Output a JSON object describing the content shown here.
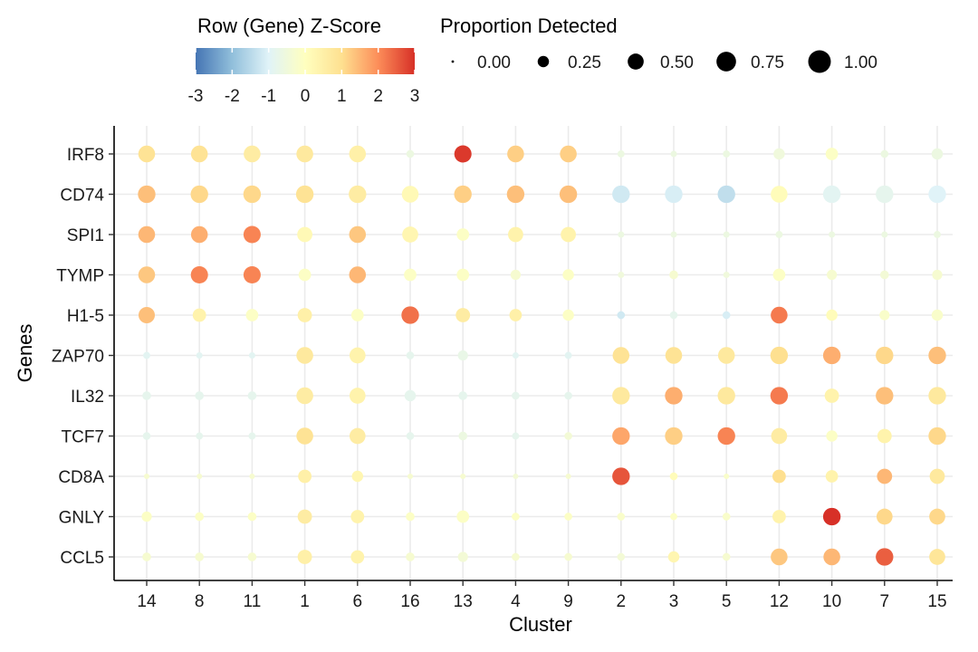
{
  "chart_data": {
    "type": "dotplot",
    "xlabel": "Cluster",
    "ylabel": "Genes",
    "clusters": [
      "14",
      "8",
      "11",
      "1",
      "6",
      "16",
      "13",
      "4",
      "9",
      "2",
      "3",
      "5",
      "12",
      "10",
      "7",
      "15"
    ],
    "genes": [
      "IRF8",
      "CD74",
      "SPI1",
      "TYMP",
      "H1-5",
      "ZAP70",
      "IL32",
      "TCF7",
      "CD8A",
      "GNLY",
      "CCL5"
    ],
    "legend_color": {
      "title": "Row (Gene) Z-Score",
      "ticks": [
        "-3",
        "-2",
        "-1",
        "0",
        "1",
        "2",
        "3"
      ],
      "range": [
        -3,
        3
      ],
      "colors": [
        "#4575b4",
        "#91bfdb",
        "#e0f3f8",
        "#ffffbf",
        "#fee090",
        "#fc8d59",
        "#d73027"
      ]
    },
    "legend_size": {
      "title": "Proportion Detected",
      "values": [
        0.0,
        0.25,
        0.5,
        0.75,
        1.0
      ],
      "labels": [
        "0.00",
        "0.25",
        "0.50",
        "0.75",
        "1.00"
      ]
    },
    "grid": true,
    "zscore": [
      [
        0.9,
        0.9,
        0.6,
        0.7,
        0.5,
        -0.6,
        2.9,
        1.2,
        1.2,
        -0.6,
        -0.6,
        -0.6,
        -0.5,
        -0.1,
        -0.6,
        -0.6
      ],
      [
        1.4,
        1.1,
        1.1,
        0.9,
        0.6,
        0.2,
        1.2,
        1.4,
        1.4,
        -1.2,
        -1.1,
        -1.4,
        0.1,
        -0.9,
        -0.8,
        -1.0
      ],
      [
        1.5,
        1.6,
        2.1,
        0.2,
        1.3,
        0.3,
        -0.1,
        0.4,
        0.4,
        -0.6,
        -0.6,
        -0.6,
        -0.6,
        -0.6,
        -0.6,
        -0.6
      ],
      [
        1.3,
        2.1,
        2.1,
        -0.1,
        1.5,
        -0.1,
        -0.1,
        -0.3,
        -0.1,
        -0.5,
        -0.3,
        -0.5,
        -0.1,
        -0.3,
        -0.4,
        -0.3
      ],
      [
        1.4,
        0.4,
        -0.1,
        0.5,
        -0.1,
        2.3,
        0.6,
        0.5,
        -0.1,
        -1.2,
        -0.8,
        -1.1,
        2.2,
        0.1,
        -0.2,
        -0.2
      ],
      [
        -0.9,
        -0.9,
        -0.9,
        0.7,
        0.4,
        -0.8,
        -0.7,
        -0.9,
        -0.9,
        0.9,
        0.9,
        0.7,
        1.0,
        1.6,
        1.1,
        1.4
      ],
      [
        -0.8,
        -0.8,
        -0.8,
        0.6,
        0.4,
        -0.8,
        -0.8,
        -0.8,
        -0.8,
        0.7,
        1.6,
        0.7,
        2.2,
        0.4,
        1.4,
        0.7
      ],
      [
        -0.8,
        -0.8,
        -0.8,
        0.9,
        0.6,
        -0.8,
        -0.6,
        -0.8,
        -0.4,
        1.7,
        1.2,
        2.1,
        0.6,
        -0.1,
        0.4,
        1.1
      ],
      [
        -0.3,
        -0.3,
        -0.3,
        0.5,
        0.3,
        -0.3,
        -0.3,
        -0.4,
        -0.3,
        2.6,
        0.1,
        -0.2,
        1.0,
        0.4,
        1.5,
        0.7
      ],
      [
        -0.1,
        -0.1,
        -0.1,
        0.6,
        0.4,
        -0.1,
        -0.1,
        -0.1,
        -0.1,
        -0.2,
        -0.1,
        -0.2,
        0.4,
        3.0,
        1.1,
        1.1
      ],
      [
        -0.3,
        -0.3,
        -0.3,
        0.5,
        0.4,
        -0.3,
        -0.4,
        -0.3,
        -0.3,
        -0.4,
        0.3,
        -0.3,
        1.3,
        1.5,
        2.5,
        0.8
      ]
    ],
    "proportion": [
      [
        0.55,
        0.55,
        0.55,
        0.55,
        0.55,
        0.12,
        0.58,
        0.55,
        0.55,
        0.1,
        0.08,
        0.1,
        0.25,
        0.3,
        0.12,
        0.25
      ],
      [
        0.6,
        0.6,
        0.6,
        0.6,
        0.6,
        0.55,
        0.6,
        0.6,
        0.6,
        0.6,
        0.6,
        0.6,
        0.55,
        0.6,
        0.6,
        0.6
      ],
      [
        0.55,
        0.55,
        0.58,
        0.45,
        0.55,
        0.5,
        0.3,
        0.45,
        0.45,
        0.08,
        0.08,
        0.08,
        0.1,
        0.08,
        0.08,
        0.1
      ],
      [
        0.55,
        0.58,
        0.58,
        0.3,
        0.55,
        0.3,
        0.3,
        0.2,
        0.25,
        0.08,
        0.15,
        0.08,
        0.3,
        0.2,
        0.15,
        0.2
      ],
      [
        0.52,
        0.35,
        0.3,
        0.4,
        0.3,
        0.6,
        0.4,
        0.3,
        0.25,
        0.12,
        0.12,
        0.12,
        0.55,
        0.25,
        0.2,
        0.25
      ],
      [
        0.1,
        0.08,
        0.08,
        0.55,
        0.5,
        0.12,
        0.2,
        0.08,
        0.1,
        0.55,
        0.55,
        0.55,
        0.6,
        0.6,
        0.6,
        0.6
      ],
      [
        0.15,
        0.15,
        0.15,
        0.55,
        0.5,
        0.25,
        0.15,
        0.12,
        0.12,
        0.6,
        0.6,
        0.6,
        0.6,
        0.4,
        0.6,
        0.6
      ],
      [
        0.12,
        0.1,
        0.1,
        0.55,
        0.5,
        0.12,
        0.15,
        0.1,
        0.12,
        0.6,
        0.6,
        0.6,
        0.5,
        0.25,
        0.4,
        0.6
      ],
      [
        0.06,
        0.06,
        0.06,
        0.35,
        0.25,
        0.06,
        0.06,
        0.06,
        0.06,
        0.6,
        0.12,
        0.06,
        0.35,
        0.3,
        0.45,
        0.45
      ],
      [
        0.2,
        0.15,
        0.15,
        0.4,
        0.35,
        0.15,
        0.3,
        0.12,
        0.12,
        0.12,
        0.1,
        0.12,
        0.35,
        0.6,
        0.5,
        0.5
      ],
      [
        0.15,
        0.15,
        0.15,
        0.4,
        0.35,
        0.15,
        0.2,
        0.12,
        0.12,
        0.12,
        0.25,
        0.12,
        0.55,
        0.55,
        0.6,
        0.5
      ]
    ]
  }
}
